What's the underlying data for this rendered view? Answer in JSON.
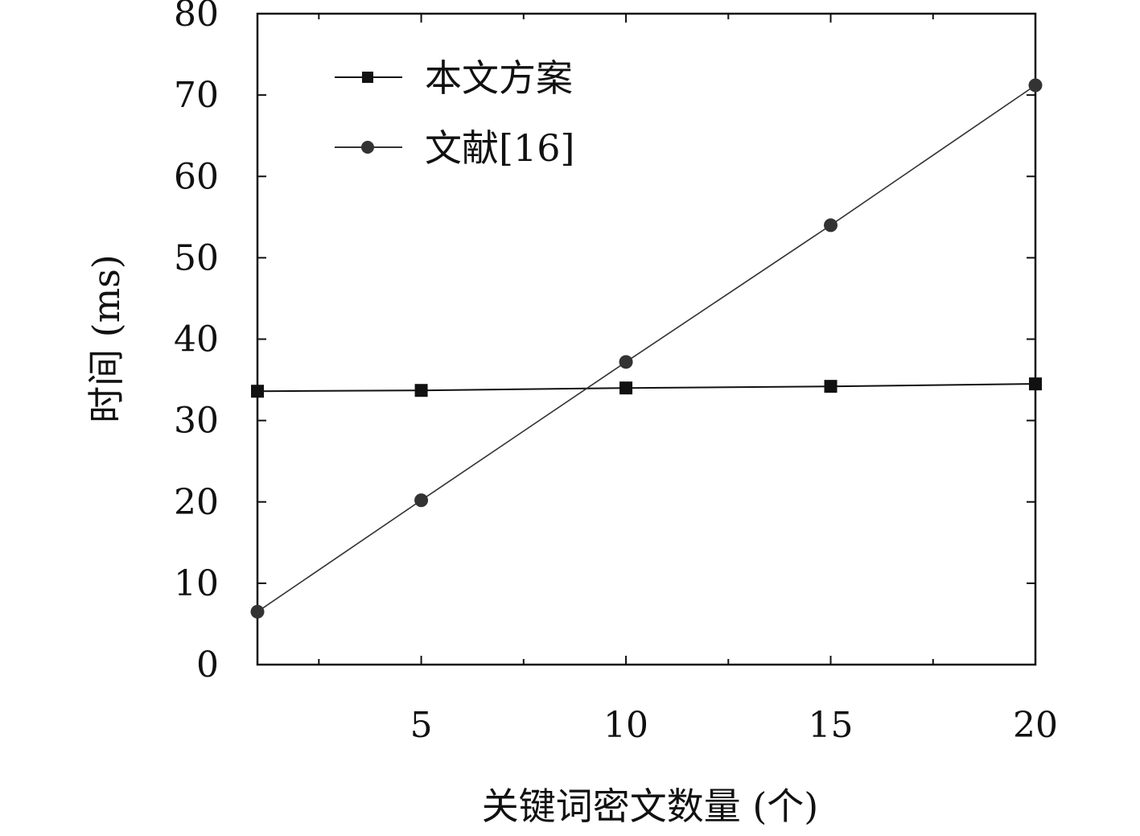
{
  "chart_data": {
    "type": "line",
    "title": "",
    "xlabel": "关键词密文数量 (个)",
    "ylabel": "时间 (ms)",
    "xlim": [
      1,
      20
    ],
    "ylim": [
      0,
      80
    ],
    "x_ticks": [
      5,
      10,
      15,
      20
    ],
    "x_minor_ticks": [
      2.5,
      7.5,
      12.5,
      17.5
    ],
    "y_ticks": [
      0,
      10,
      20,
      30,
      40,
      50,
      60,
      70,
      80
    ],
    "grid": false,
    "legend_position": "top-left",
    "series": [
      {
        "name": "本文方案",
        "marker": "square",
        "color": "#111111",
        "x": [
          1,
          5,
          10,
          15,
          20
        ],
        "values": [
          33.6,
          33.7,
          34.0,
          34.2,
          34.5
        ]
      },
      {
        "name": "文献[16]",
        "marker": "circle",
        "color": "#333333",
        "x": [
          1,
          5,
          10,
          15,
          20
        ],
        "values": [
          6.5,
          20.2,
          37.2,
          54.0,
          71.2
        ]
      }
    ]
  }
}
